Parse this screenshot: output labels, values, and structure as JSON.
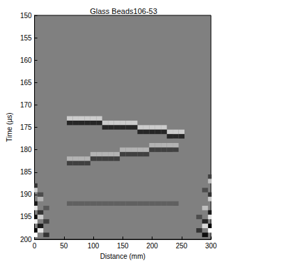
{
  "chart_data": {
    "type": "heatmap",
    "title": "Glass Beads106-53",
    "x_label": "Distance (mm)",
    "y_label": "Time (µs)",
    "xlim": [
      0,
      300
    ],
    "xticks": [
      0,
      50,
      100,
      150,
      200,
      250,
      300
    ],
    "ylim": [
      200,
      150
    ],
    "yticks": [
      150,
      155,
      160,
      165,
      170,
      175,
      180,
      185,
      190,
      195,
      200
    ],
    "value_range": [
      -1,
      1
    ],
    "cell_size": [
      10,
      1
    ],
    "cells": [
      [
        60,
        173,
        0.6
      ],
      [
        70,
        173,
        0.6
      ],
      [
        80,
        173,
        0.6
      ],
      [
        90,
        173,
        0.6
      ],
      [
        100,
        173,
        0.6
      ],
      [
        110,
        173,
        0.6
      ],
      [
        120,
        174,
        0.6
      ],
      [
        130,
        174,
        0.6
      ],
      [
        140,
        174,
        0.6
      ],
      [
        150,
        174,
        0.6
      ],
      [
        160,
        174,
        0.6
      ],
      [
        170,
        174,
        0.6
      ],
      [
        180,
        175,
        0.6
      ],
      [
        190,
        175,
        0.6
      ],
      [
        200,
        175,
        0.6
      ],
      [
        210,
        175,
        0.6
      ],
      [
        220,
        175,
        0.6
      ],
      [
        230,
        176,
        0.6
      ],
      [
        240,
        176,
        0.6
      ],
      [
        250,
        176,
        0.6
      ],
      [
        60,
        174,
        -0.7
      ],
      [
        70,
        174,
        -0.7
      ],
      [
        80,
        174,
        -0.7
      ],
      [
        90,
        174,
        -0.7
      ],
      [
        100,
        174,
        -0.7
      ],
      [
        110,
        174,
        -0.7
      ],
      [
        120,
        175,
        -0.7
      ],
      [
        130,
        175,
        -0.7
      ],
      [
        140,
        175,
        -0.7
      ],
      [
        150,
        175,
        -0.7
      ],
      [
        160,
        175,
        -0.7
      ],
      [
        170,
        175,
        -0.7
      ],
      [
        180,
        176,
        -0.7
      ],
      [
        190,
        176,
        -0.7
      ],
      [
        200,
        176,
        -0.7
      ],
      [
        210,
        176,
        -0.7
      ],
      [
        220,
        176,
        -0.7
      ],
      [
        230,
        177,
        -0.7
      ],
      [
        240,
        177,
        -0.7
      ],
      [
        250,
        177,
        -0.7
      ],
      [
        60,
        182,
        0.4
      ],
      [
        70,
        182,
        0.4
      ],
      [
        80,
        182,
        0.4
      ],
      [
        90,
        182,
        0.4
      ],
      [
        100,
        181,
        0.4
      ],
      [
        110,
        181,
        0.4
      ],
      [
        120,
        181,
        0.4
      ],
      [
        130,
        181,
        0.4
      ],
      [
        140,
        181,
        0.4
      ],
      [
        150,
        180,
        0.4
      ],
      [
        160,
        180,
        0.4
      ],
      [
        170,
        180,
        0.4
      ],
      [
        180,
        180,
        0.4
      ],
      [
        190,
        180,
        0.4
      ],
      [
        200,
        179,
        0.4
      ],
      [
        210,
        179,
        0.4
      ],
      [
        220,
        179,
        0.4
      ],
      [
        230,
        179,
        0.4
      ],
      [
        240,
        179,
        0.4
      ],
      [
        60,
        183,
        -0.5
      ],
      [
        70,
        183,
        -0.5
      ],
      [
        80,
        183,
        -0.5
      ],
      [
        90,
        183,
        -0.5
      ],
      [
        100,
        182,
        -0.5
      ],
      [
        110,
        182,
        -0.5
      ],
      [
        120,
        182,
        -0.5
      ],
      [
        130,
        182,
        -0.5
      ],
      [
        140,
        182,
        -0.5
      ],
      [
        150,
        181,
        -0.5
      ],
      [
        160,
        181,
        -0.5
      ],
      [
        170,
        181,
        -0.5
      ],
      [
        180,
        181,
        -0.5
      ],
      [
        190,
        181,
        -0.5
      ],
      [
        200,
        180,
        -0.5
      ],
      [
        210,
        180,
        -0.5
      ],
      [
        220,
        180,
        -0.5
      ],
      [
        230,
        180,
        -0.5
      ],
      [
        240,
        180,
        -0.5
      ],
      [
        60,
        192,
        -0.25
      ],
      [
        70,
        192,
        -0.25
      ],
      [
        80,
        192,
        -0.25
      ],
      [
        90,
        192,
        -0.25
      ],
      [
        100,
        192,
        -0.25
      ],
      [
        110,
        192,
        -0.25
      ],
      [
        120,
        192,
        -0.25
      ],
      [
        130,
        192,
        -0.25
      ],
      [
        140,
        192,
        -0.25
      ],
      [
        150,
        192,
        -0.25
      ],
      [
        160,
        192,
        -0.25
      ],
      [
        170,
        192,
        -0.25
      ],
      [
        180,
        192,
        -0.25
      ],
      [
        190,
        192,
        -0.25
      ],
      [
        200,
        192,
        -0.25
      ],
      [
        210,
        192,
        -0.25
      ],
      [
        220,
        192,
        -0.25
      ],
      [
        230,
        192,
        -0.25
      ],
      [
        240,
        192,
        -0.25
      ],
      [
        0,
        188,
        -0.6
      ],
      [
        0,
        189,
        0.6
      ],
      [
        0,
        192,
        -0.8
      ],
      [
        0,
        193,
        0.8
      ],
      [
        0,
        195,
        -0.9
      ],
      [
        0,
        196,
        0.9
      ],
      [
        0,
        198,
        -1
      ],
      [
        0,
        199,
        1
      ],
      [
        10,
        190,
        -0.4
      ],
      [
        10,
        191,
        0.4
      ],
      [
        10,
        194,
        -0.6
      ],
      [
        10,
        195,
        0.6
      ],
      [
        10,
        197,
        -0.8
      ],
      [
        10,
        198,
        0.8
      ],
      [
        20,
        193,
        -0.3
      ],
      [
        20,
        196,
        -0.5
      ],
      [
        20,
        199,
        -0.6
      ],
      [
        300,
        186,
        -0.5
      ],
      [
        300,
        187,
        0.5
      ],
      [
        300,
        190,
        -0.6
      ],
      [
        300,
        191,
        0.6
      ],
      [
        300,
        194,
        -0.8
      ],
      [
        300,
        195,
        0.8
      ],
      [
        300,
        197,
        -1
      ],
      [
        300,
        198,
        1
      ],
      [
        290,
        189,
        -0.4
      ],
      [
        290,
        193,
        0.5
      ],
      [
        290,
        196,
        -0.7
      ],
      [
        290,
        197,
        0.7
      ],
      [
        290,
        199,
        -0.9
      ],
      [
        280,
        195,
        -0.4
      ],
      [
        280,
        198,
        -0.6
      ]
    ]
  }
}
